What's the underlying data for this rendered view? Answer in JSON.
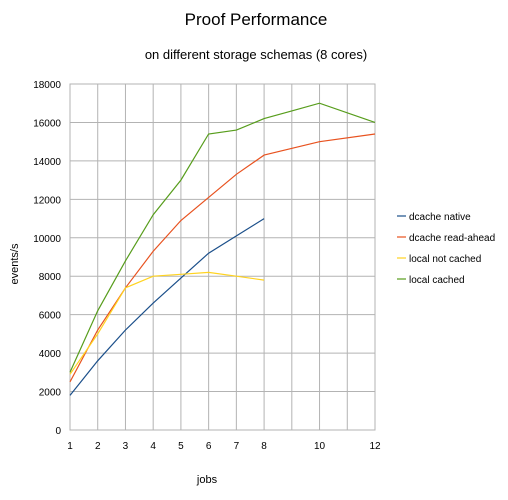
{
  "chart_data": {
    "type": "line",
    "title": "Proof Performance",
    "subtitle": "on different storage schemas (8 cores)",
    "xlabel": "jobs",
    "ylabel": "events/s",
    "xlim": [
      1,
      12
    ],
    "ylim": [
      0,
      18000
    ],
    "x_ticks": [
      1,
      2,
      3,
      4,
      5,
      6,
      7,
      8,
      10,
      12
    ],
    "y_ticks": [
      0,
      2000,
      4000,
      6000,
      8000,
      10000,
      12000,
      14000,
      16000,
      18000
    ],
    "grid": true,
    "legend_position": "right",
    "series": [
      {
        "name": "dcache native",
        "color": "#1b4f8a",
        "points": [
          [
            1,
            1800
          ],
          [
            2,
            3600
          ],
          [
            3,
            5200
          ],
          [
            4,
            6600
          ],
          [
            5,
            7900
          ],
          [
            6,
            9200
          ],
          [
            7,
            10100
          ],
          [
            8,
            11000
          ]
        ]
      },
      {
        "name": "dcache read-ahead",
        "color": "#e8521f",
        "points": [
          [
            1,
            2500
          ],
          [
            2,
            5200
          ],
          [
            3,
            7400
          ],
          [
            4,
            9300
          ],
          [
            5,
            10900
          ],
          [
            6,
            12100
          ],
          [
            7,
            13300
          ],
          [
            8,
            14300
          ],
          [
            10,
            15000
          ],
          [
            12,
            15400
          ]
        ]
      },
      {
        "name": "local not cached",
        "color": "#ffd320",
        "points": [
          [
            1,
            2900
          ],
          [
            2,
            5000
          ],
          [
            3,
            7400
          ],
          [
            4,
            8000
          ],
          [
            5,
            8100
          ],
          [
            6,
            8200
          ],
          [
            7,
            8000
          ],
          [
            8,
            7800
          ]
        ]
      },
      {
        "name": "local cached",
        "color": "#579d1c",
        "points": [
          [
            1,
            3000
          ],
          [
            2,
            6200
          ],
          [
            3,
            8800
          ],
          [
            4,
            11200
          ],
          [
            5,
            13000
          ],
          [
            6,
            15400
          ],
          [
            7,
            15600
          ],
          [
            8,
            16200
          ],
          [
            9,
            16600
          ],
          [
            10,
            17000
          ],
          [
            12,
            16000
          ]
        ]
      }
    ]
  }
}
